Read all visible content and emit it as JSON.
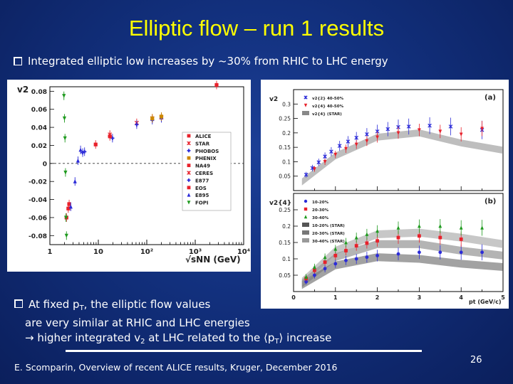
{
  "slide": {
    "title": "Elliptic flow – run 1 results",
    "bullet1": "Integrated elliptic low increases by ~30% from RHIC to LHC energy",
    "bullet2_a": "At fixed p",
    "bullet2_sub": "T",
    "bullet2_b": ", the elliptic flow values",
    "bullet2_line2": "are very similar at RHIC and LHC energies",
    "bullet2_line3_a": "→ higher integrated v",
    "bullet2_line3_sub": "2",
    "bullet2_line3_b": " at LHC related to the ⟨p",
    "bullet2_line3_sub2": "T",
    "bullet2_line3_c": "⟩ increase",
    "footer": "E. Scomparin, Overview of recent ALICE results, Kruger, December 2016",
    "page_number": "26"
  },
  "chart_data": [
    {
      "type": "scatter",
      "title": "",
      "xlabel": "√sNN (GeV)",
      "ylabel": "v2",
      "xscale": "log",
      "xlim": [
        1,
        10000
      ],
      "ylim": [
        -0.09,
        0.085
      ],
      "xticks": [
        "1",
        "10",
        "10²",
        "10³",
        "10⁴"
      ],
      "yticks": [
        "0.08",
        "0.06",
        "0.04",
        "0.02",
        "0",
        "-0.02",
        "-0.04",
        "-0.06",
        "-0.08"
      ],
      "legend_position": "right",
      "reference_line": 0,
      "series": [
        {
          "name": "ALICE",
          "color": "#e8212b",
          "marker": "square",
          "points": [
            [
              2760,
              0.087
            ]
          ]
        },
        {
          "name": "STAR",
          "color": "#e8212b",
          "marker": "star",
          "points": [
            [
              62,
              0.045
            ],
            [
              130,
              0.05
            ],
            [
              200,
              0.051
            ]
          ]
        },
        {
          "name": "PHOBOS",
          "color": "#2b2bd8",
          "marker": "cross",
          "points": [
            [
              19.6,
              0.028
            ],
            [
              62,
              0.043
            ],
            [
              130,
              0.048
            ],
            [
              200,
              0.05
            ]
          ]
        },
        {
          "name": "PHENIX",
          "color": "#cc8800",
          "marker": "square",
          "points": [
            [
              130,
              0.05
            ],
            [
              200,
              0.052
            ]
          ]
        },
        {
          "name": "NA49",
          "color": "#e8212b",
          "marker": "square",
          "points": [
            [
              8.8,
              0.021
            ],
            [
              17.3,
              0.03
            ]
          ]
        },
        {
          "name": "CERES",
          "color": "#e8212b",
          "marker": "star",
          "points": [
            [
              17.3,
              0.032
            ]
          ]
        },
        {
          "name": "E877",
          "color": "#2b2bd8",
          "marker": "cross",
          "points": [
            [
              4.75,
              0.012
            ],
            [
              5.2,
              0.013
            ]
          ]
        },
        {
          "name": "EOS",
          "color": "#e8212b",
          "marker": "square",
          "points": [
            [
              2.2,
              -0.06
            ],
            [
              2.4,
              -0.05
            ],
            [
              2.5,
              -0.045
            ]
          ]
        },
        {
          "name": "E895",
          "color": "#2b2bd8",
          "marker": "triangle",
          "points": [
            [
              2.7,
              -0.048
            ],
            [
              3.3,
              -0.02
            ],
            [
              3.8,
              0.003
            ],
            [
              4.3,
              0.015
            ]
          ]
        },
        {
          "name": "FOPI",
          "color": "#1f9a1f",
          "marker": "triangle-down",
          "points": [
            [
              1.95,
              0.075
            ],
            [
              2.0,
              0.05
            ],
            [
              2.05,
              0.028
            ],
            [
              2.1,
              -0.01
            ],
            [
              2.15,
              -0.06
            ],
            [
              2.2,
              -0.08
            ]
          ]
        }
      ]
    },
    {
      "type": "scatter",
      "panel": "(a)",
      "xlabel": "",
      "ylabel": "v2",
      "xlim": [
        0,
        5
      ],
      "ylim": [
        0,
        0.35
      ],
      "yticks": [
        "0.3",
        "0.25",
        "0.2",
        "0.15",
        "0.1",
        "0.05"
      ],
      "legend_position": "top-left",
      "series": [
        {
          "name": "v2{2} 40-50%",
          "color": "#2b2bd8",
          "marker": "star",
          "x": [
            0.3,
            0.45,
            0.6,
            0.75,
            0.9,
            1.1,
            1.3,
            1.5,
            1.75,
            2.0,
            2.25,
            2.5,
            2.75,
            3.25,
            3.75,
            4.5
          ],
          "y": [
            0.055,
            0.078,
            0.098,
            0.118,
            0.135,
            0.155,
            0.17,
            0.183,
            0.195,
            0.205,
            0.213,
            0.22,
            0.222,
            0.225,
            0.222,
            0.21
          ]
        },
        {
          "name": "v2{4} 40-50%",
          "color": "#e8212b",
          "marker": "triangle-down",
          "x": [
            0.5,
            0.75,
            1.0,
            1.25,
            1.5,
            1.75,
            2.0,
            2.5,
            3.0,
            3.5,
            4.0,
            4.5
          ],
          "y": [
            0.075,
            0.1,
            0.125,
            0.145,
            0.16,
            0.172,
            0.185,
            0.2,
            0.21,
            0.205,
            0.195,
            0.215
          ]
        },
        {
          "name": "v2{4} (STAR)",
          "color": "#888888",
          "marker": "band",
          "x": [
            0.2,
            1.0,
            2.0,
            3.0,
            4.0,
            5.0
          ],
          "y": [
            0.03,
            0.12,
            0.185,
            0.2,
            0.165,
            0.14
          ]
        }
      ]
    },
    {
      "type": "scatter",
      "panel": "(b)",
      "xlabel": "pt (GeV/c)",
      "ylabel": "v2{4}",
      "xlim": [
        0,
        5
      ],
      "ylim": [
        0,
        0.3
      ],
      "xticks": [
        "0",
        "1",
        "2",
        "3",
        "4",
        "5"
      ],
      "yticks": [
        "0.25",
        "0.2",
        "0.15",
        "0.1",
        "0.05"
      ],
      "legend_position": "top-left",
      "series": [
        {
          "name": "10-20%",
          "color": "#2b2bd8",
          "marker": "circle",
          "x": [
            0.3,
            0.5,
            0.75,
            1.0,
            1.25,
            1.5,
            1.75,
            2.0,
            2.5,
            3.0,
            3.5,
            4.0,
            4.5
          ],
          "y": [
            0.03,
            0.05,
            0.07,
            0.085,
            0.095,
            0.1,
            0.105,
            0.11,
            0.115,
            0.12,
            0.12,
            0.12,
            0.12
          ]
        },
        {
          "name": "20-30%",
          "color": "#e8212b",
          "marker": "square",
          "x": [
            0.3,
            0.5,
            0.75,
            1.0,
            1.25,
            1.5,
            1.75,
            2.0,
            2.5,
            3.0,
            3.5,
            4.0
          ],
          "y": [
            0.04,
            0.065,
            0.09,
            0.11,
            0.125,
            0.14,
            0.148,
            0.155,
            0.165,
            0.17,
            0.165,
            0.16
          ]
        },
        {
          "name": "30-40%",
          "color": "#1f9a1f",
          "marker": "triangle",
          "x": [
            0.3,
            0.5,
            0.75,
            1.0,
            1.25,
            1.5,
            1.75,
            2.0,
            2.5,
            3.0,
            3.5,
            4.0,
            4.5
          ],
          "y": [
            0.045,
            0.075,
            0.105,
            0.13,
            0.15,
            0.165,
            0.175,
            0.185,
            0.195,
            0.2,
            0.2,
            0.195,
            0.195
          ]
        },
        {
          "name": "10-20% (STAR)",
          "color": "#555555",
          "marker": "band",
          "x": [
            0.2,
            1.0,
            2.0,
            3.0,
            4.0,
            5.0
          ],
          "y": [
            0.02,
            0.08,
            0.105,
            0.1,
            0.085,
            0.075
          ]
        },
        {
          "name": "20-30% (STAR)",
          "color": "#777777",
          "marker": "band",
          "x": [
            0.2,
            1.0,
            2.0,
            3.0,
            4.0,
            5.0
          ],
          "y": [
            0.025,
            0.105,
            0.145,
            0.145,
            0.125,
            0.11
          ]
        },
        {
          "name": "30-40% (STAR)",
          "color": "#999999",
          "marker": "band",
          "x": [
            0.2,
            1.0,
            2.0,
            3.0,
            4.0,
            5.0
          ],
          "y": [
            0.03,
            0.125,
            0.175,
            0.18,
            0.165,
            0.145
          ]
        }
      ]
    }
  ]
}
